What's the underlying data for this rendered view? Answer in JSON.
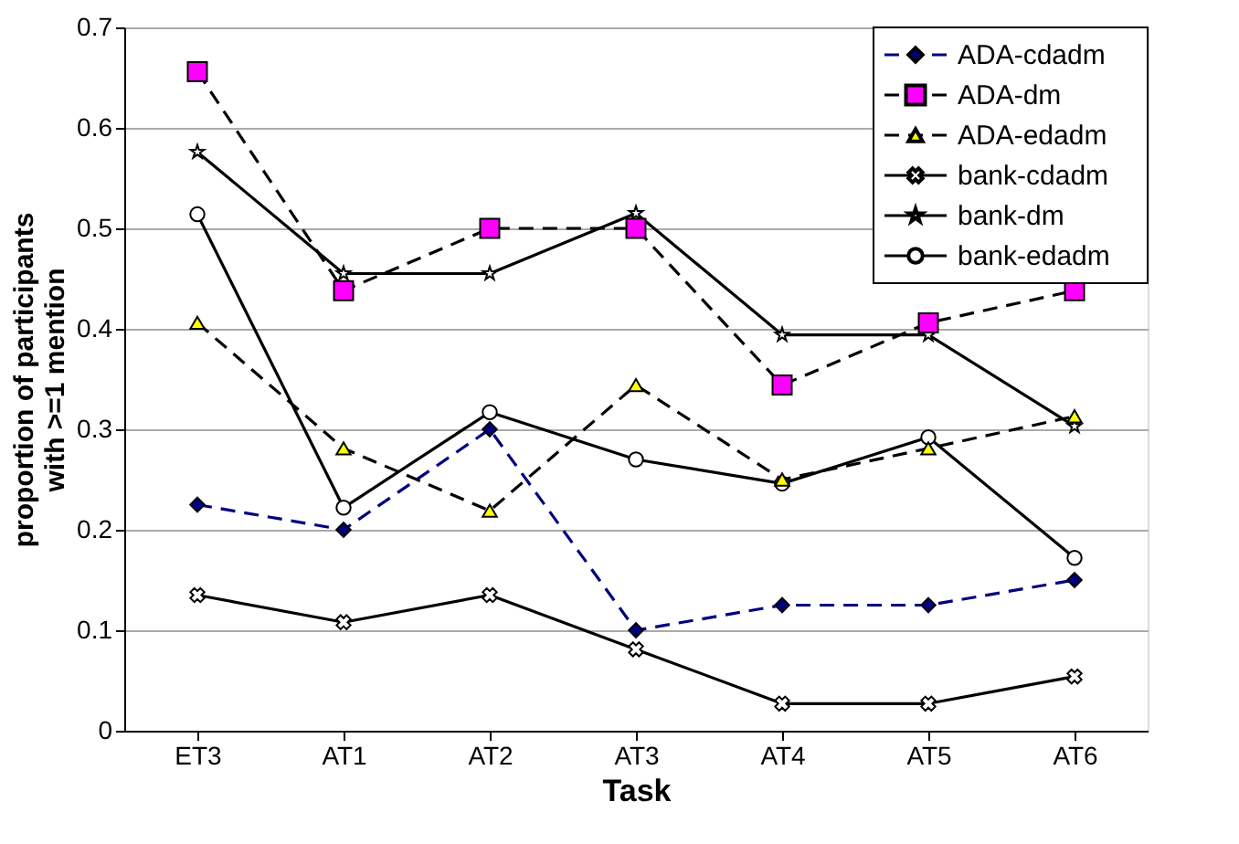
{
  "chart_data": {
    "type": "line",
    "xlabel": "Task",
    "ylabel": "proportion of participants\nwith >=1 mention",
    "categories": [
      "ET3",
      "AT1",
      "AT2",
      "AT3",
      "AT4",
      "AT5",
      "AT6"
    ],
    "series": [
      {
        "name": "ADA-cdadm",
        "color": "#000080",
        "marker": "diamond",
        "line_style": "dashed",
        "values": [
          0.225,
          0.2,
          0.3,
          0.1,
          0.125,
          0.125,
          0.15
        ]
      },
      {
        "name": "ADA-dm",
        "color": "#ff00ff",
        "marker": "square",
        "line_style": "dashed",
        "values": [
          0.656,
          0.438,
          0.5,
          0.5,
          0.344,
          0.406,
          0.438
        ]
      },
      {
        "name": "ADA-edadm",
        "color": "#ffff00",
        "marker": "triangle",
        "line_style": "dashed",
        "values": [
          0.406,
          0.281,
          0.219,
          0.344,
          0.25,
          0.281,
          0.313
        ]
      },
      {
        "name": "bank-cdadm",
        "color": "#000000",
        "marker": "cross",
        "line_style": "solid",
        "values": [
          0.135,
          0.108,
          0.135,
          0.081,
          0.027,
          0.027,
          0.054
        ]
      },
      {
        "name": "bank-dm",
        "color": "#000000",
        "marker": "star",
        "line_style": "solid",
        "values": [
          0.576,
          0.455,
          0.455,
          0.515,
          0.394,
          0.394,
          0.303
        ]
      },
      {
        "name": "bank-edadm",
        "color": "#000000",
        "marker": "circle",
        "line_style": "solid",
        "values": [
          0.514,
          0.222,
          0.317,
          0.27,
          0.246,
          0.292,
          0.172
        ]
      }
    ],
    "ylim": [
      0,
      0.7
    ],
    "yticks": [
      0,
      0.1,
      0.2,
      0.3,
      0.4,
      0.5,
      0.6,
      0.7
    ],
    "grid": "y",
    "legend": "top right"
  }
}
